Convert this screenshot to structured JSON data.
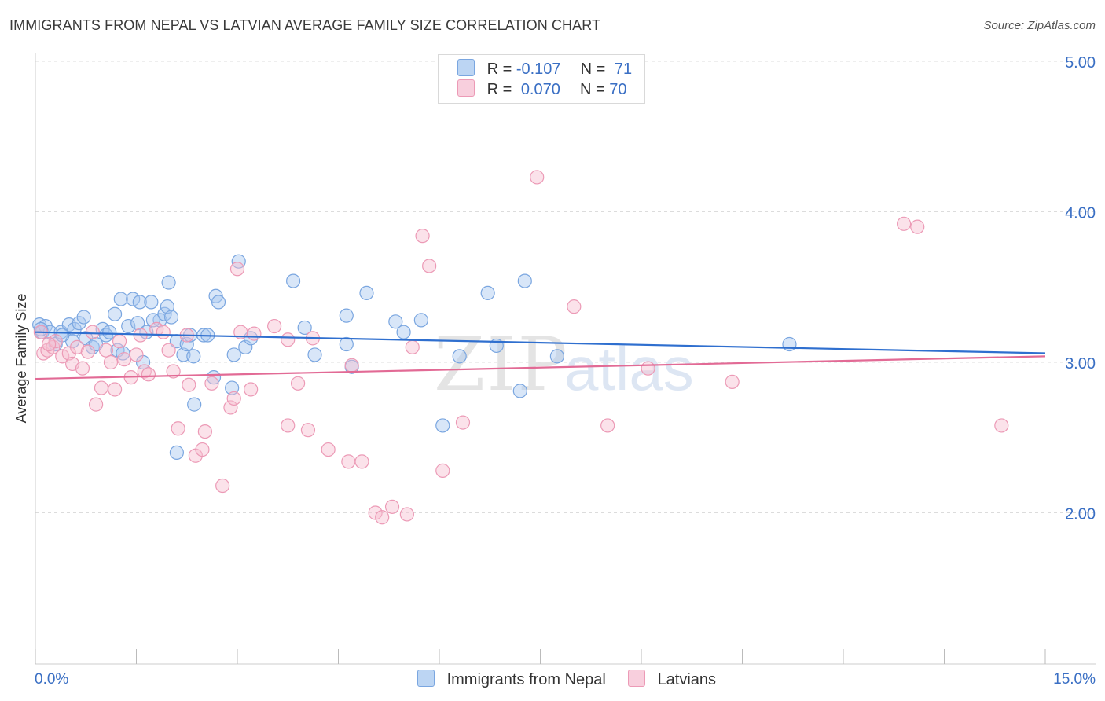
{
  "title": "IMMIGRANTS FROM NEPAL VS LATVIAN AVERAGE FAMILY SIZE CORRELATION CHART",
  "source": "Source: ZipAtlas.com",
  "watermark": {
    "part1": "ZIP",
    "part2": "atlas"
  },
  "legend": {
    "nepal": {
      "r_label": "R =",
      "r_value": "-0.107",
      "n_label": "N =",
      "n_value": "71"
    },
    "latvian": {
      "r_label": "R =",
      "r_value": "0.070",
      "n_label": "N =",
      "n_value": "70"
    }
  },
  "bottom_legend": {
    "nepal": "Immigrants from Nepal",
    "latvian": "Latvians"
  },
  "colors": {
    "nepal_fill": "#a9c8f0",
    "nepal_stroke": "#7aa6e0",
    "nepal_line": "#2f6fcf",
    "latvian_fill": "#f6bfd1",
    "latvian_stroke": "#ec9ab6",
    "latvian_line": "#e26a95",
    "tick_label": "#3a6fc4",
    "grid": "#dcdcdc"
  },
  "chart_data": {
    "type": "scatter",
    "title": "IMMIGRANTS FROM NEPAL VS LATVIAN AVERAGE FAMILY SIZE CORRELATION CHART",
    "xlabel": "",
    "ylabel": "Average Family Size",
    "xlim": [
      0.0,
      15.0
    ],
    "ylim": [
      1.0,
      5.1
    ],
    "x_tick_labels": [
      "0.0%",
      "15.0%"
    ],
    "y_ticks": [
      2.0,
      3.0,
      4.0,
      5.0
    ],
    "y_tick_labels": [
      "2.00",
      "3.00",
      "4.00",
      "5.00"
    ],
    "grid": true,
    "legend_position": "top-center",
    "series": [
      {
        "name": "Immigrants from Nepal",
        "r": -0.107,
        "n": 71,
        "trend": {
          "x": [
            0.0,
            15.0
          ],
          "y": [
            3.2,
            3.06
          ]
        },
        "points": [
          [
            0.06,
            3.25
          ],
          [
            0.1,
            3.2
          ],
          [
            0.15,
            3.24
          ],
          [
            0.22,
            3.2
          ],
          [
            0.3,
            3.12
          ],
          [
            0.38,
            3.2
          ],
          [
            0.5,
            3.25
          ],
          [
            0.58,
            3.22
          ],
          [
            0.65,
            3.26
          ],
          [
            0.72,
            3.3
          ],
          [
            0.75,
            3.16
          ],
          [
            0.85,
            3.1
          ],
          [
            0.9,
            3.12
          ],
          [
            1.0,
            3.22
          ],
          [
            1.05,
            3.18
          ],
          [
            1.1,
            3.2
          ],
          [
            1.18,
            3.32
          ],
          [
            1.22,
            3.08
          ],
          [
            1.27,
            3.42
          ],
          [
            1.38,
            3.24
          ],
          [
            1.45,
            3.42
          ],
          [
            1.52,
            3.26
          ],
          [
            1.55,
            3.4
          ],
          [
            1.6,
            3.0
          ],
          [
            1.65,
            3.2
          ],
          [
            1.72,
            3.4
          ],
          [
            1.85,
            3.28
          ],
          [
            1.92,
            3.32
          ],
          [
            1.96,
            3.37
          ],
          [
            1.98,
            3.53
          ],
          [
            2.02,
            3.3
          ],
          [
            2.1,
            3.14
          ],
          [
            2.1,
            2.4
          ],
          [
            2.2,
            3.05
          ],
          [
            2.25,
            3.12
          ],
          [
            2.3,
            3.18
          ],
          [
            2.35,
            3.04
          ],
          [
            2.36,
            2.72
          ],
          [
            2.5,
            3.18
          ],
          [
            2.56,
            3.18
          ],
          [
            2.65,
            2.9
          ],
          [
            2.68,
            3.44
          ],
          [
            2.72,
            3.4
          ],
          [
            2.92,
            2.83
          ],
          [
            3.02,
            3.67
          ],
          [
            3.12,
            3.1
          ],
          [
            3.2,
            3.16
          ],
          [
            3.83,
            3.54
          ],
          [
            4.0,
            3.23
          ],
          [
            4.15,
            3.05
          ],
          [
            4.62,
            3.12
          ],
          [
            4.62,
            3.31
          ],
          [
            4.7,
            2.97
          ],
          [
            4.92,
            3.46
          ],
          [
            5.35,
            3.27
          ],
          [
            5.47,
            3.2
          ],
          [
            5.73,
            3.28
          ],
          [
            6.05,
            2.58
          ],
          [
            6.3,
            3.04
          ],
          [
            6.72,
            3.46
          ],
          [
            6.85,
            3.11
          ],
          [
            7.2,
            2.81
          ],
          [
            7.27,
            3.54
          ],
          [
            7.75,
            3.04
          ],
          [
            11.2,
            3.12
          ],
          [
            0.08,
            3.22
          ],
          [
            0.55,
            3.14
          ],
          [
            1.75,
            3.28
          ],
          [
            2.95,
            3.05
          ],
          [
            0.4,
            3.18
          ],
          [
            1.3,
            3.06
          ]
        ]
      },
      {
        "name": "Latvians",
        "r": 0.07,
        "n": 70,
        "trend": {
          "x": [
            0.0,
            15.0
          ],
          "y": [
            2.89,
            3.04
          ]
        },
        "points": [
          [
            0.08,
            3.2
          ],
          [
            0.12,
            3.06
          ],
          [
            0.18,
            3.08
          ],
          [
            0.26,
            3.1
          ],
          [
            0.3,
            3.14
          ],
          [
            0.4,
            3.04
          ],
          [
            0.5,
            3.06
          ],
          [
            0.55,
            2.99
          ],
          [
            0.62,
            3.1
          ],
          [
            0.7,
            2.96
          ],
          [
            0.78,
            3.07
          ],
          [
            0.85,
            3.2
          ],
          [
            0.9,
            2.72
          ],
          [
            0.98,
            2.83
          ],
          [
            1.05,
            3.08
          ],
          [
            1.12,
            3.0
          ],
          [
            1.18,
            2.82
          ],
          [
            1.25,
            3.14
          ],
          [
            1.32,
            3.02
          ],
          [
            1.42,
            2.9
          ],
          [
            1.5,
            3.05
          ],
          [
            1.56,
            3.18
          ],
          [
            1.62,
            2.94
          ],
          [
            1.68,
            2.92
          ],
          [
            1.8,
            3.22
          ],
          [
            1.9,
            3.2
          ],
          [
            1.98,
            3.08
          ],
          [
            2.05,
            2.94
          ],
          [
            2.12,
            2.56
          ],
          [
            2.25,
            3.18
          ],
          [
            2.28,
            2.85
          ],
          [
            2.38,
            2.38
          ],
          [
            2.48,
            2.42
          ],
          [
            2.52,
            2.54
          ],
          [
            2.62,
            2.86
          ],
          [
            2.78,
            2.18
          ],
          [
            2.9,
            2.7
          ],
          [
            2.95,
            2.76
          ],
          [
            3.0,
            3.62
          ],
          [
            3.05,
            3.2
          ],
          [
            3.2,
            2.82
          ],
          [
            3.25,
            3.19
          ],
          [
            3.55,
            3.24
          ],
          [
            3.75,
            3.15
          ],
          [
            3.75,
            2.58
          ],
          [
            3.9,
            2.86
          ],
          [
            4.05,
            2.55
          ],
          [
            4.12,
            3.16
          ],
          [
            4.35,
            2.42
          ],
          [
            4.65,
            2.34
          ],
          [
            4.7,
            2.98
          ],
          [
            4.85,
            2.34
          ],
          [
            5.05,
            2.0
          ],
          [
            5.15,
            1.97
          ],
          [
            5.3,
            2.04
          ],
          [
            5.52,
            1.99
          ],
          [
            5.6,
            3.1
          ],
          [
            5.75,
            3.84
          ],
          [
            5.85,
            3.64
          ],
          [
            6.05,
            2.28
          ],
          [
            6.35,
            2.6
          ],
          [
            7.45,
            4.23
          ],
          [
            8.0,
            3.37
          ],
          [
            8.5,
            2.58
          ],
          [
            9.1,
            2.96
          ],
          [
            10.35,
            2.87
          ],
          [
            12.9,
            3.92
          ],
          [
            13.1,
            3.9
          ],
          [
            14.35,
            2.58
          ],
          [
            0.2,
            3.12
          ]
        ]
      }
    ]
  }
}
